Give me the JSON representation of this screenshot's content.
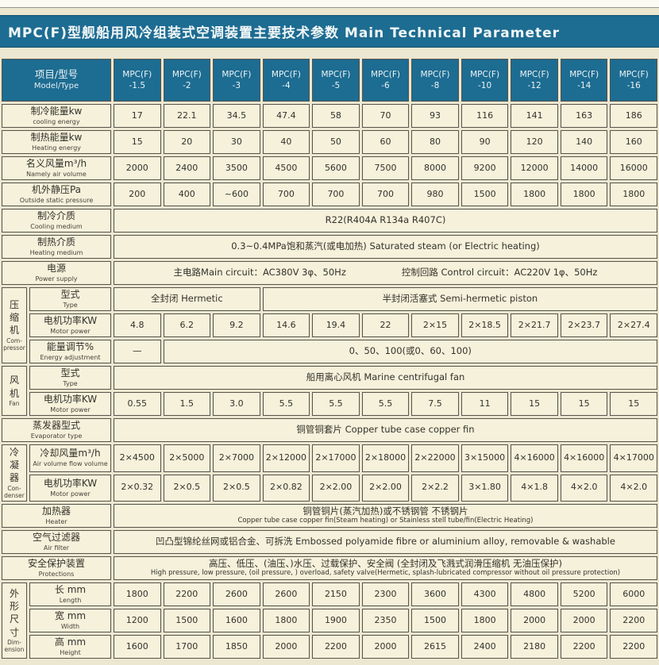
{
  "title": "MPC(F)型舰船用风冷组装式空调装置主要技术参数 Main Technical Parameter",
  "colors": {
    "accent": "#1d6c92",
    "cell_bg": "#f5f1db",
    "page_bg": "#ebe7d0",
    "border": "#56534a"
  },
  "table": {
    "corner_cn": "项目/型号",
    "corner_en": "Model/Type",
    "model_prefix": "MPC(F)",
    "model_suffixes": [
      "-1.5",
      "-2",
      "-3",
      "-4",
      "-5",
      "-6",
      "-8",
      "-10",
      "-12",
      "-14",
      "-16"
    ],
    "rows": [
      {
        "label_cn": "制冷能量kw",
        "label_en": "cooling energy",
        "values": [
          "17",
          "22.1",
          "34.5",
          "47.4",
          "58",
          "70",
          "93",
          "116",
          "141",
          "163",
          "186"
        ]
      },
      {
        "label_cn": "制热能量kw",
        "label_en": "Heating energy",
        "values": [
          "15",
          "20",
          "30",
          "40",
          "50",
          "60",
          "80",
          "90",
          "120",
          "140",
          "160"
        ]
      },
      {
        "label_cn": "名义风量m³/h",
        "label_en": "Namely air volume",
        "values": [
          "2000",
          "2400",
          "3500",
          "4500",
          "5600",
          "7500",
          "8000",
          "9200",
          "12000",
          "14000",
          "16000"
        ]
      },
      {
        "label_cn": "机外静压Pa",
        "label_en": "Outside static pressure",
        "values": [
          "200",
          "400",
          "~600",
          "700",
          "700",
          "700",
          "980",
          "1500",
          "1800",
          "1800",
          "1800"
        ]
      },
      {
        "label_cn": "制冷介质",
        "label_en": "Cooling medium",
        "cells": [
          {
            "t": "R22(R404A R134a R407C)",
            "span": 11
          }
        ]
      },
      {
        "label_cn": "制热介质",
        "label_en": "Heating medium",
        "cells": [
          {
            "t": "0.3~0.4MPa饱和蒸汽(或电加热)  Saturated steam (or Electric heating)",
            "span": 11
          }
        ]
      },
      {
        "label_cn": "电源",
        "label_en": "Power supply",
        "cells": [
          {
            "t2": [
              "主电路Main circuit：AC380V 3φ、50Hz",
              "控制回路 Control circuit：AC220V 1φ、50Hz"
            ],
            "span": 11
          }
        ]
      },
      {
        "group": {
          "cn": "压缩机",
          "en": [
            "Com-",
            "pressor"
          ],
          "span": 3
        },
        "label_cn": "型式",
        "label_en": "Type",
        "cells": [
          {
            "t": "全封闭 Hermetic",
            "span": 3
          },
          {
            "t": "半封闭活塞式 Semi-hermetic piston",
            "span": 8
          }
        ]
      },
      {
        "in_group": true,
        "label_cn": "电机功率KW",
        "label_en": "Motor power",
        "values": [
          "4.8",
          "6.2",
          "9.2",
          "14.6",
          "19.4",
          "22",
          "2×15",
          "2×18.5",
          "2×21.7",
          "2×23.7",
          "2×27.4"
        ]
      },
      {
        "in_group": true,
        "label_cn": "能量调节%",
        "label_en": "Energy adjustment",
        "cells": [
          {
            "t": "—",
            "span": 1
          },
          {
            "t": "0、50、100(或0、60、100)",
            "span": 10
          }
        ]
      },
      {
        "group": {
          "cn": "风机",
          "en": [
            "Fan"
          ],
          "span": 2
        },
        "label_cn": "型式",
        "label_en": "Type",
        "cells": [
          {
            "t": "船用离心风机 Marine centrifugal fan",
            "span": 11
          }
        ]
      },
      {
        "in_group": true,
        "label_cn": "电机功率KW",
        "label_en": "Motor power",
        "values": [
          "0.55",
          "1.5",
          "3.0",
          "5.5",
          "5.5",
          "5.5",
          "7.5",
          "11",
          "15",
          "15",
          "15"
        ]
      },
      {
        "label_cn": "蒸发器型式",
        "label_en": "Evaporator type",
        "cells": [
          {
            "t": "铜管铜套片 Copper tube case copper fin",
            "span": 11
          }
        ]
      },
      {
        "group": {
          "cn": "冷凝器",
          "en": [
            "Con-",
            "denser"
          ],
          "span": 2
        },
        "label_cn": "冷却风量m³/h",
        "label_en": "Air volume flow volume",
        "values": [
          "2×4500",
          "2×5000",
          "2×7000",
          "2×12000",
          "2×17000",
          "2×18000",
          "2×22000",
          "3×15000",
          "4×16000",
          "4×16000",
          "4×17000"
        ]
      },
      {
        "in_group": true,
        "label_cn": "电机功率KW",
        "label_en": "Motor power",
        "values": [
          "2×0.32",
          "2×0.5",
          "2×0.5",
          "2×0.82",
          "2×2.00",
          "2×2.00",
          "2×2.2",
          "3×1.80",
          "4×1.8",
          "4×2.0",
          "4×2.0"
        ]
      },
      {
        "label_cn": "加热器",
        "label_en": "Heater",
        "cells": [
          {
            "cn": "铜管铜片(蒸汽加热)或不锈钢管 不锈钢片",
            "en": "Copper tube case copper fin(Steam heating) or Stainless stell tube/fin(Electric Heating)",
            "span": 11
          }
        ]
      },
      {
        "label_cn": "空气过滤器",
        "label_en": "Air filter",
        "cells": [
          {
            "t": "凹凸型锦纶丝网或铝合金、可拆洗 Embossed polyamide fibre or aluminium alloy, removable & washable",
            "span": 11
          }
        ]
      },
      {
        "label_cn": "安全保护装置",
        "label_en": "Protections",
        "cells": [
          {
            "cn": "高压、低压、(油压、)水压、过载保护、安全阀 (全封闭及飞溅式润滑压缩机 无油压保护)",
            "en": "High pressure, low pressure, (oil pressure, ) overload, safety valve(Hermetic, splash-lubricated compressor without oil pressure protection)",
            "span": 11
          }
        ]
      },
      {
        "group": {
          "cn": "外形尺寸",
          "en": [
            "Dim-",
            "ension"
          ],
          "span": 3
        },
        "label_cn": "长 mm",
        "label_en": "Length",
        "values": [
          "1800",
          "2200",
          "2600",
          "2600",
          "2150",
          "2300",
          "3600",
          "4300",
          "4800",
          "5200",
          "6000"
        ]
      },
      {
        "in_group": true,
        "label_cn": "宽 mm",
        "label_en": "Width",
        "values": [
          "1200",
          "1500",
          "1600",
          "1800",
          "1900",
          "2350",
          "1500",
          "1800",
          "2000",
          "2000",
          "2200"
        ]
      },
      {
        "in_group": true,
        "label_cn": "高 mm",
        "label_en": "Height",
        "values": [
          "1600",
          "1700",
          "1850",
          "2000",
          "2200",
          "2000",
          "2615",
          "2400",
          "2180",
          "2200",
          "2200"
        ]
      }
    ]
  }
}
